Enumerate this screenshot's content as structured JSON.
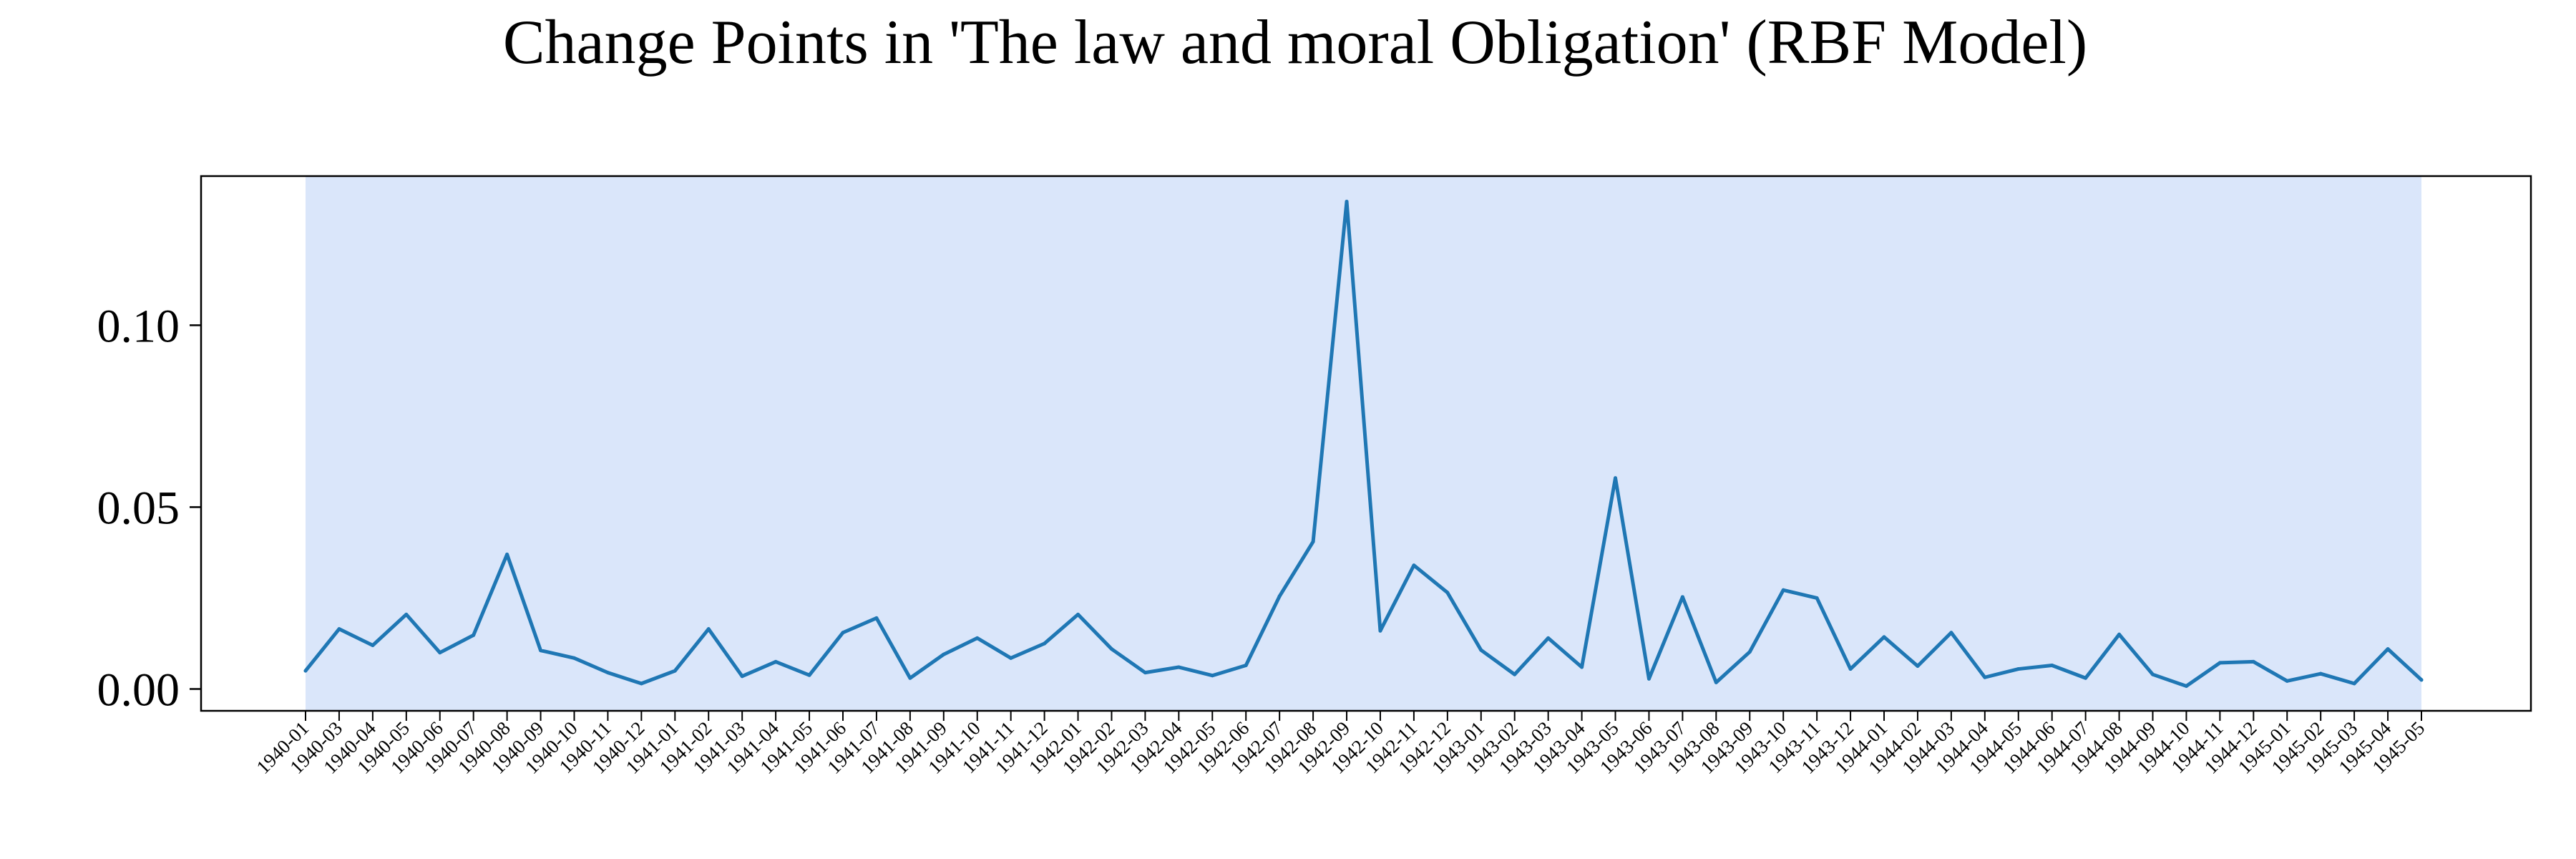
{
  "chart_data": {
    "type": "line",
    "title": "Change Points in 'The law and moral Obligation' (RBF Model)",
    "xlabel": "",
    "ylabel": "",
    "ylim": [
      -0.006,
      0.141
    ],
    "yticks": [
      0.0,
      0.05,
      0.1
    ],
    "ytick_labels": [
      "0.00",
      "0.05",
      "0.10"
    ],
    "categories": [
      "1940-01",
      "1940-03",
      "1940-04",
      "1940-05",
      "1940-06",
      "1940-07",
      "1940-08",
      "1940-09",
      "1940-10",
      "1940-11",
      "1940-12",
      "1941-01",
      "1941-02",
      "1941-03",
      "1941-04",
      "1941-05",
      "1941-06",
      "1941-07",
      "1941-08",
      "1941-09",
      "1941-10",
      "1941-11",
      "1941-12",
      "1942-01",
      "1942-02",
      "1942-03",
      "1942-04",
      "1942-05",
      "1942-06",
      "1942-07",
      "1942-08",
      "1942-09",
      "1942-10",
      "1942-11",
      "1942-12",
      "1943-01",
      "1943-02",
      "1943-03",
      "1943-04",
      "1943-05",
      "1943-06",
      "1943-07",
      "1943-08",
      "1943-09",
      "1943-10",
      "1943-11",
      "1943-12",
      "1944-01",
      "1944-02",
      "1944-03",
      "1944-04",
      "1944-05",
      "1944-06",
      "1944-07",
      "1944-08",
      "1944-09",
      "1944-10",
      "1944-11",
      "1944-12",
      "1945-01",
      "1945-02",
      "1945-03",
      "1945-04",
      "1945-05"
    ],
    "series": [
      {
        "color": "#1f77b4",
        "values": [
          0.005,
          0.0165,
          0.012,
          0.0205,
          0.01,
          0.0148,
          0.037,
          0.0106,
          0.0085,
          0.0045,
          0.0015,
          0.005,
          0.0165,
          0.0035,
          0.0075,
          0.0038,
          0.0155,
          0.0195,
          0.003,
          0.0095,
          0.014,
          0.0085,
          0.0125,
          0.0205,
          0.011,
          0.0045,
          0.006,
          0.0037,
          0.0065,
          0.0255,
          0.0405,
          0.134,
          0.016,
          0.034,
          0.0265,
          0.0107,
          0.004,
          0.014,
          0.006,
          0.058,
          0.0028,
          0.0253,
          0.0018,
          0.0102,
          0.0272,
          0.025,
          0.0055,
          0.0143,
          0.0063,
          0.0155,
          0.0032,
          0.0055,
          0.0065,
          0.003,
          0.015,
          0.004,
          0.0008,
          0.0072,
          0.0075,
          0.0022,
          0.0042,
          0.0015,
          0.011,
          0.0025
        ]
      }
    ],
    "shaded_region": {
      "from": "1940-01",
      "to": "1945-05",
      "color": "#dae6fa"
    },
    "grid": false,
    "legend": "none"
  }
}
